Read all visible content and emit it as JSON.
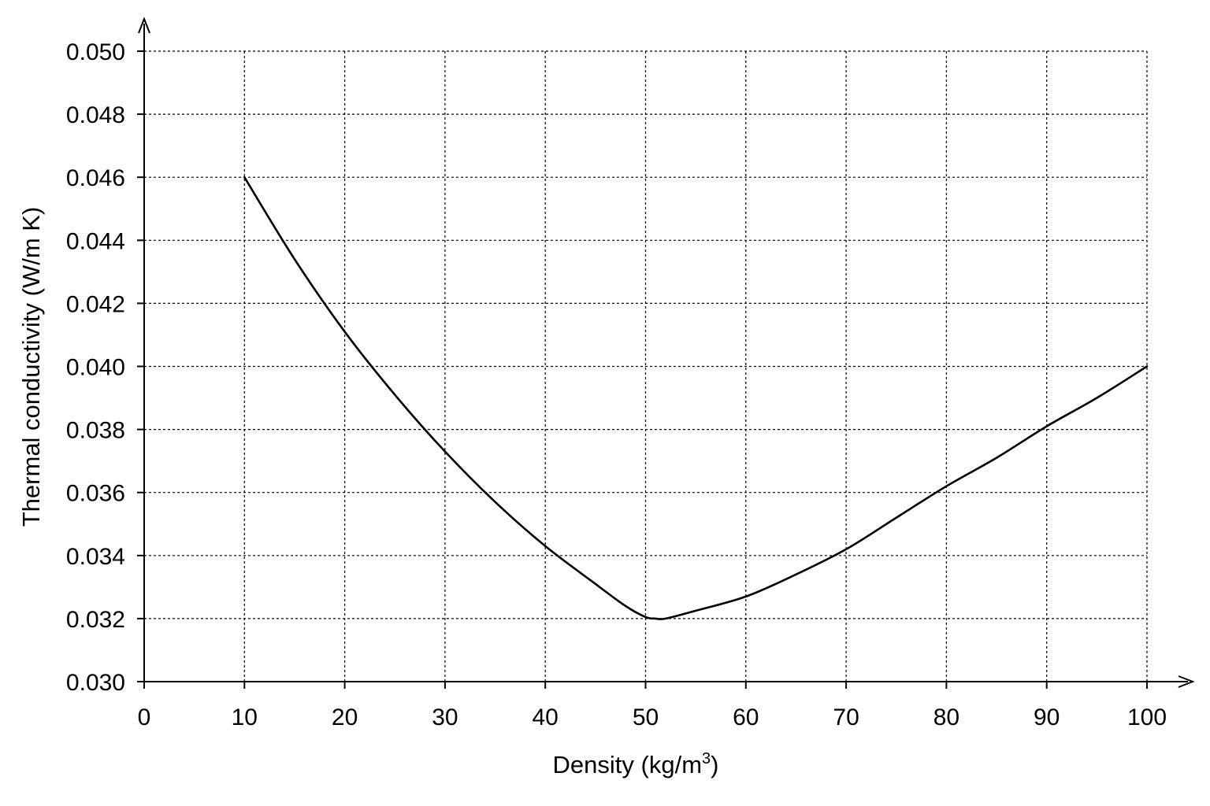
{
  "chart_data": {
    "type": "line",
    "title": "",
    "xlabel": "Density (kg/m",
    "xlabel_sup": "3",
    "xlabel_close": ")",
    "ylabel": "Thermal conductivity (W/m K)",
    "xlim": [
      0,
      100
    ],
    "ylim": [
      0.03,
      0.05
    ],
    "grid": true,
    "x_ticks": [
      "0",
      "10",
      "20",
      "30",
      "40",
      "50",
      "60",
      "70",
      "80",
      "90",
      "100"
    ],
    "y_ticks": [
      "0.030",
      "0.032",
      "0.034",
      "0.036",
      "0.038",
      "0.040",
      "0.042",
      "0.044",
      "0.046",
      "0.048",
      "0.050"
    ],
    "x": [
      10,
      15,
      20,
      25,
      30,
      35,
      40,
      45,
      48,
      50,
      51,
      52,
      55,
      60,
      65,
      70,
      75,
      80,
      85,
      90,
      95,
      100
    ],
    "y": [
      0.046,
      0.0434,
      0.0411,
      0.0391,
      0.0373,
      0.0357,
      0.0343,
      0.0331,
      0.0324,
      0.03205,
      0.032,
      0.032,
      0.03225,
      0.0327,
      0.0334,
      0.0342,
      0.0352,
      0.0362,
      0.0371,
      0.0381,
      0.039,
      0.04
    ]
  }
}
